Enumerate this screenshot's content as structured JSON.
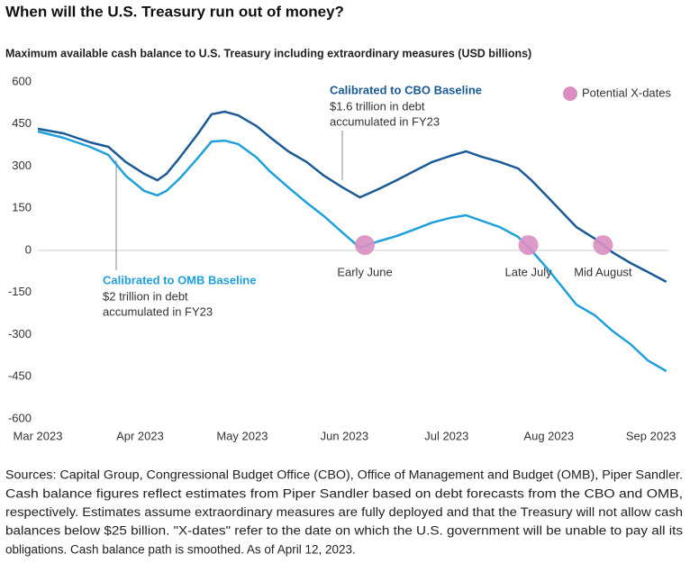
{
  "chart_data": {
    "type": "line",
    "title": "When will the U.S. Treasury run out of money?",
    "subtitle": "Maximum available cash balance to U.S. Treasury including extraordinary measures (USD billions)",
    "x": [
      0,
      0.25,
      0.51,
      0.69,
      0.86,
      1.04,
      1.17,
      1.26,
      1.39,
      1.57,
      1.7,
      1.83,
      1.96,
      2.14,
      2.27,
      2.45,
      2.63,
      2.8,
      2.98,
      3.15,
      3.33,
      3.51,
      3.68,
      3.86,
      4.04,
      4.19,
      4.34,
      4.52,
      4.7,
      4.83,
      5.0,
      5.27,
      5.45,
      5.62,
      5.8,
      5.97,
      6.15
    ],
    "xlim": [
      0,
      6.17
    ],
    "xticks": [
      {
        "value": 0,
        "label": "Mar 2023"
      },
      {
        "value": 1,
        "label": "Apr 2023"
      },
      {
        "value": 2,
        "label": "May 2023"
      },
      {
        "value": 3,
        "label": "Jun 2023"
      },
      {
        "value": 4,
        "label": "Jul 2023"
      },
      {
        "value": 5,
        "label": "Aug 2023"
      },
      {
        "value": 6,
        "label": "Sep 2023"
      }
    ],
    "ylim": [
      -600,
      600
    ],
    "yticks": [
      600,
      450,
      300,
      150,
      0,
      -150,
      -300,
      -450,
      -600
    ],
    "zero_line": true,
    "series": [
      {
        "name": "Calibrated to CBO Baseline",
        "color": "#1a5a96",
        "notes": [
          "$1.6 trillion in debt",
          "accumulated in FY23"
        ],
        "values": [
          433,
          417,
          385,
          369,
          315,
          273,
          250,
          273,
          331,
          417,
          485,
          494,
          481,
          443,
          404,
          353,
          315,
          266,
          225,
          189,
          218,
          250,
          282,
          315,
          337,
          353,
          334,
          315,
          292,
          250,
          186,
          83,
          42,
          -6,
          -45,
          -77,
          -112
        ]
      },
      {
        "name": "Calibrated to OMB Baseline",
        "color": "#1ea0dc",
        "notes": [
          "$2 trillion in debt",
          "accumulated in FY23"
        ],
        "values": [
          424,
          401,
          369,
          340,
          266,
          212,
          196,
          212,
          257,
          331,
          388,
          391,
          379,
          331,
          282,
          225,
          170,
          122,
          64,
          10,
          32,
          51,
          74,
          99,
          116,
          125,
          106,
          83,
          48,
          0,
          -71,
          -193,
          -231,
          -286,
          -334,
          -392,
          -430
        ]
      }
    ],
    "xdates_legend": "Potential X-dates",
    "xdates_color": "#d98fc0",
    "xdates": [
      {
        "x": 3.2,
        "value": 19,
        "label": "Early June"
      },
      {
        "x": 4.8,
        "value": 19,
        "label": "Late July"
      },
      {
        "x": 5.53,
        "value": 19,
        "label": "Mid August"
      }
    ],
    "footnote": [
      "Sources: Capital Group, Congressional Budget Office (CBO), Office of Management and Budget (OMB), Piper Sandler.",
      "Cash balance figures reflect estimates from Piper Sandler based on debt forecasts from the CBO and OMB,",
      "respectively. Estimates assume extraordinary measures are fully deployed and that the Treasury will not allow cash",
      "balances below $25 billion. \"X-dates\" refer to the date on which the U.S. government will be unable to pay all its",
      "obligations. Cash balance path is smoothed. As of April 12, 2023."
    ]
  }
}
